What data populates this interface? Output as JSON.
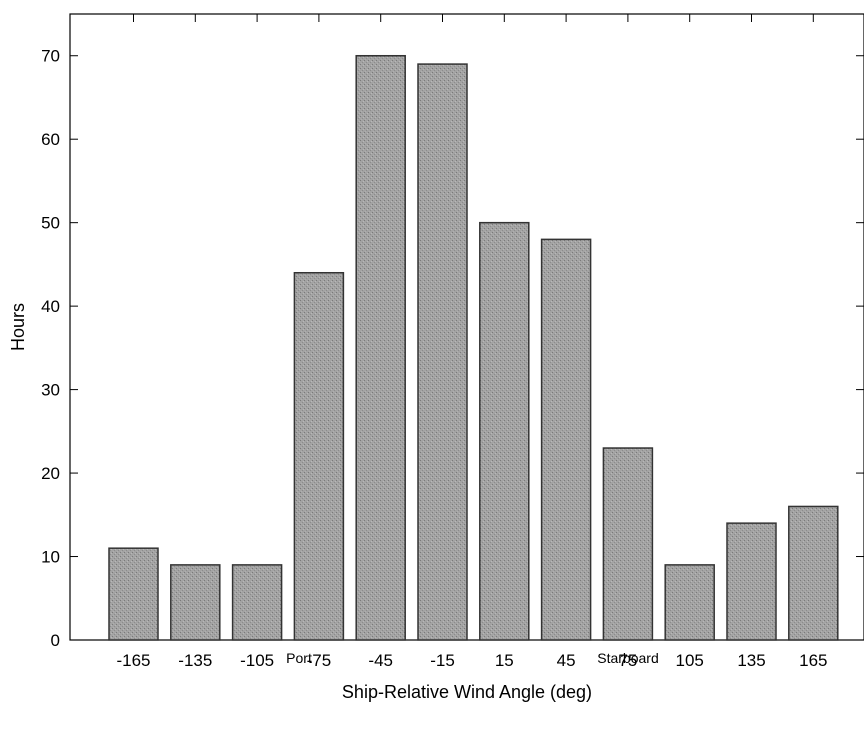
{
  "chart_data": {
    "type": "bar",
    "categories": [
      "-165",
      "-135",
      "-105",
      "-75",
      "-45",
      "-15",
      "15",
      "45",
      "75",
      "105",
      "135",
      "165"
    ],
    "values": [
      11,
      9,
      9,
      44,
      70,
      69,
      50,
      48,
      23,
      9,
      14,
      16
    ],
    "title": "",
    "xlabel": "Ship-Relative Wind Angle (deg)",
    "ylabel": "Hours",
    "ylim": [
      0,
      75
    ],
    "yticks": [
      0,
      10,
      20,
      30,
      40,
      50,
      60,
      70
    ],
    "grid": false,
    "side_labels": {
      "left": "Port",
      "right": "Starboard"
    },
    "bar_color": "#9a9a9a",
    "bar_edge_color": "#333333"
  }
}
